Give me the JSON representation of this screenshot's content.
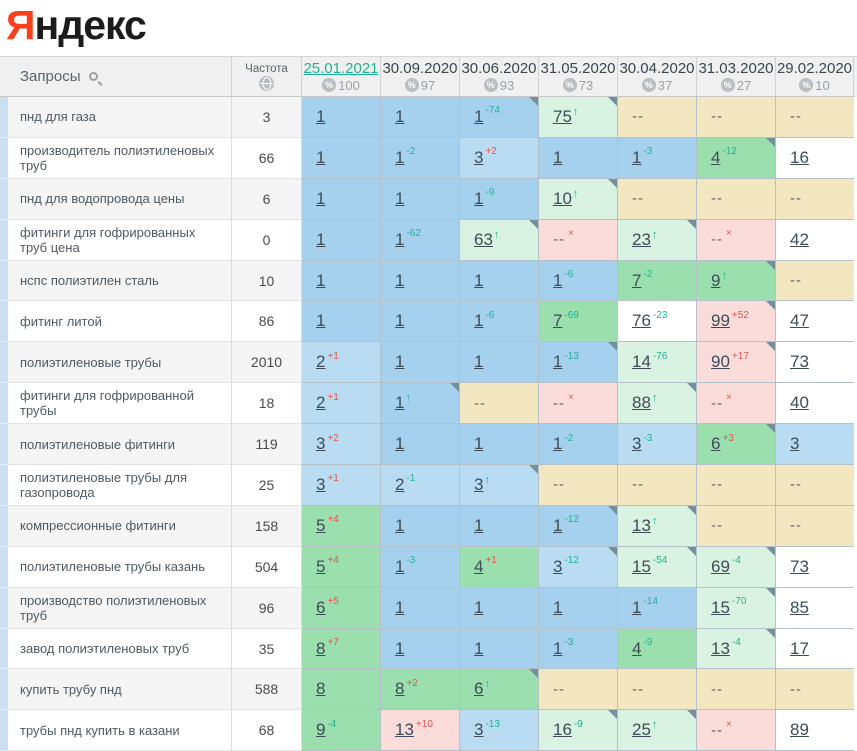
{
  "logo": {
    "red": "Я",
    "rest": "ндекс"
  },
  "colors": {
    "brand_red": "#fb3f1d",
    "active_date": "#1fb394",
    "change_up_green": "#1fb394",
    "change_down_red": "#e0584a",
    "top1_blue": "#a5d1ee",
    "top3_blue": "#b9dcf3",
    "top10_green": "#9adfad",
    "improved_light_green": "#daf2e1",
    "no_data_tan": "#f3e7c2",
    "dropped_pink": "#fadcdb"
  },
  "table": {
    "queries_header": "Запросы",
    "frequency_header": "Частота",
    "icons": {
      "search": "search-icon",
      "engine": "globe-icon",
      "percent": "%"
    },
    "columns": [
      {
        "date": "25.01.2021",
        "percent": "100",
        "active": true
      },
      {
        "date": "30.09.2020",
        "percent": "97",
        "active": false
      },
      {
        "date": "30.06.2020",
        "percent": "93",
        "active": false
      },
      {
        "date": "31.05.2020",
        "percent": "73",
        "active": false
      },
      {
        "date": "30.04.2020",
        "percent": "37",
        "active": false
      },
      {
        "date": "31.03.2020",
        "percent": "27",
        "active": false
      },
      {
        "date": "29.02.2020",
        "percent": "10",
        "active": false
      }
    ],
    "rows": [
      {
        "keyword": "пнд для газа",
        "frequency": "3",
        "cells": [
          {
            "v": "1",
            "bg": "b1"
          },
          {
            "v": "1",
            "bg": "b1"
          },
          {
            "v": "1",
            "sup": "-74",
            "supc": "g",
            "bg": "b1",
            "corner": true
          },
          {
            "v": "75",
            "arrow": "up",
            "bg": "lg",
            "corner": true
          },
          {
            "v": "--",
            "bg": "t"
          },
          {
            "v": "--",
            "bg": "t"
          },
          {
            "v": "--",
            "bg": "t"
          }
        ]
      },
      {
        "keyword": "производитель полиэтиленовых труб",
        "frequency": "66",
        "cells": [
          {
            "v": "1",
            "bg": "b1"
          },
          {
            "v": "1",
            "sup": "-2",
            "supc": "g",
            "bg": "b1"
          },
          {
            "v": "3",
            "sup": "+2",
            "supc": "r",
            "bg": "b2"
          },
          {
            "v": "1",
            "bg": "b1"
          },
          {
            "v": "1",
            "sup": "-3",
            "supc": "g",
            "bg": "b1"
          },
          {
            "v": "4",
            "sup": "-12",
            "supc": "g",
            "bg": "g",
            "corner": true
          },
          {
            "v": "16",
            "bg": "w"
          }
        ]
      },
      {
        "keyword": "пнд для водопровода цены",
        "frequency": "6",
        "cells": [
          {
            "v": "1",
            "bg": "b1"
          },
          {
            "v": "1",
            "bg": "b1"
          },
          {
            "v": "1",
            "sup": "-9",
            "supc": "g",
            "bg": "b1"
          },
          {
            "v": "10",
            "arrow": "up",
            "bg": "lg",
            "corner": true
          },
          {
            "v": "--",
            "bg": "t"
          },
          {
            "v": "--",
            "bg": "t"
          },
          {
            "v": "--",
            "bg": "t"
          }
        ]
      },
      {
        "keyword": "фитинги для гофрированных труб цена",
        "frequency": "0",
        "cells": [
          {
            "v": "1",
            "bg": "b1"
          },
          {
            "v": "1",
            "sup": "-62",
            "supc": "g",
            "bg": "b1"
          },
          {
            "v": "63",
            "arrow": "up",
            "bg": "lg",
            "corner": true
          },
          {
            "v": "--",
            "arrow": "x",
            "bg": "p"
          },
          {
            "v": "23",
            "arrow": "up",
            "bg": "lg",
            "corner": true
          },
          {
            "v": "--",
            "arrow": "x",
            "bg": "p"
          },
          {
            "v": "42",
            "bg": "w"
          }
        ]
      },
      {
        "keyword": "нспс полиэтилен сталь",
        "frequency": "10",
        "cells": [
          {
            "v": "1",
            "bg": "b1"
          },
          {
            "v": "1",
            "bg": "b1"
          },
          {
            "v": "1",
            "bg": "b1"
          },
          {
            "v": "1",
            "sup": "-6",
            "supc": "g",
            "bg": "b1"
          },
          {
            "v": "7",
            "sup": "-2",
            "supc": "g",
            "bg": "g"
          },
          {
            "v": "9",
            "arrow": "up",
            "bg": "g",
            "corner": true
          },
          {
            "v": "--",
            "bg": "t"
          }
        ]
      },
      {
        "keyword": "фитинг литой",
        "frequency": "86",
        "cells": [
          {
            "v": "1",
            "bg": "b1"
          },
          {
            "v": "1",
            "bg": "b1"
          },
          {
            "v": "1",
            "sup": "-6",
            "supc": "g",
            "bg": "b1"
          },
          {
            "v": "7",
            "sup": "-69",
            "supc": "g",
            "bg": "g"
          },
          {
            "v": "76",
            "sup": "-23",
            "supc": "g",
            "bg": "w"
          },
          {
            "v": "99",
            "sup": "+52",
            "supc": "r",
            "bg": "p",
            "corner": true
          },
          {
            "v": "47",
            "bg": "w"
          }
        ]
      },
      {
        "keyword": "полиэтиленовые трубы",
        "frequency": "2010",
        "cells": [
          {
            "v": "2",
            "sup": "+1",
            "supc": "r",
            "bg": "b2"
          },
          {
            "v": "1",
            "bg": "b1"
          },
          {
            "v": "1",
            "bg": "b1"
          },
          {
            "v": "1",
            "sup": "-13",
            "supc": "g",
            "bg": "b1",
            "corner": true
          },
          {
            "v": "14",
            "sup": "-76",
            "supc": "g",
            "bg": "lg"
          },
          {
            "v": "90",
            "sup": "+17",
            "supc": "r",
            "bg": "p",
            "corner": true
          },
          {
            "v": "73",
            "bg": "w"
          }
        ]
      },
      {
        "keyword": "фитинги для гофрированной трубы",
        "frequency": "18",
        "cells": [
          {
            "v": "2",
            "sup": "+1",
            "supc": "r",
            "bg": "b2"
          },
          {
            "v": "1",
            "arrow": "up",
            "bg": "b1",
            "corner": true
          },
          {
            "v": "--",
            "bg": "t"
          },
          {
            "v": "--",
            "arrow": "x",
            "bg": "p"
          },
          {
            "v": "88",
            "arrow": "up",
            "bg": "lg",
            "corner": true
          },
          {
            "v": "--",
            "arrow": "x",
            "bg": "p"
          },
          {
            "v": "40",
            "bg": "w"
          }
        ]
      },
      {
        "keyword": "полиэтиленовые фитинги",
        "frequency": "119",
        "cells": [
          {
            "v": "3",
            "sup": "+2",
            "supc": "r",
            "bg": "b2"
          },
          {
            "v": "1",
            "bg": "b1"
          },
          {
            "v": "1",
            "bg": "b1"
          },
          {
            "v": "1",
            "sup": "-2",
            "supc": "g",
            "bg": "b1"
          },
          {
            "v": "3",
            "sup": "-3",
            "supc": "g",
            "bg": "b2"
          },
          {
            "v": "6",
            "sup": "+3",
            "supc": "r",
            "bg": "g",
            "corner": true
          },
          {
            "v": "3",
            "bg": "b2"
          }
        ]
      },
      {
        "keyword": "полиэтиленовые трубы для газопровода",
        "frequency": "25",
        "cells": [
          {
            "v": "3",
            "sup": "+1",
            "supc": "r",
            "bg": "b2"
          },
          {
            "v": "2",
            "sup": "-1",
            "supc": "g",
            "bg": "b2"
          },
          {
            "v": "3",
            "arrow": "up",
            "bg": "b2",
            "corner": true
          },
          {
            "v": "--",
            "bg": "t"
          },
          {
            "v": "--",
            "bg": "t"
          },
          {
            "v": "--",
            "bg": "t"
          },
          {
            "v": "--",
            "bg": "t"
          }
        ]
      },
      {
        "keyword": "компрессионные фитинги",
        "frequency": "158",
        "cells": [
          {
            "v": "5",
            "sup": "+4",
            "supc": "r",
            "bg": "g"
          },
          {
            "v": "1",
            "bg": "b1"
          },
          {
            "v": "1",
            "bg": "b1"
          },
          {
            "v": "1",
            "sup": "-12",
            "supc": "g",
            "bg": "b1",
            "corner": true
          },
          {
            "v": "13",
            "arrow": "up",
            "bg": "lg",
            "corner": true
          },
          {
            "v": "--",
            "bg": "t"
          },
          {
            "v": "--",
            "bg": "t"
          }
        ]
      },
      {
        "keyword": "полиэтиленовые трубы казань",
        "frequency": "504",
        "cells": [
          {
            "v": "5",
            "sup": "+4",
            "supc": "r",
            "bg": "g"
          },
          {
            "v": "1",
            "sup": "-3",
            "supc": "g",
            "bg": "b1"
          },
          {
            "v": "4",
            "sup": "+1",
            "supc": "r",
            "bg": "g"
          },
          {
            "v": "3",
            "sup": "-12",
            "supc": "g",
            "bg": "b2",
            "corner": true
          },
          {
            "v": "15",
            "sup": "-54",
            "supc": "g",
            "bg": "lg",
            "corner": true
          },
          {
            "v": "69",
            "sup": "-4",
            "supc": "g",
            "bg": "lg",
            "corner": true
          },
          {
            "v": "73",
            "bg": "w"
          }
        ]
      },
      {
        "keyword": "производство полиэтиленовых труб",
        "frequency": "96",
        "cells": [
          {
            "v": "6",
            "sup": "+5",
            "supc": "r",
            "bg": "g"
          },
          {
            "v": "1",
            "bg": "b1"
          },
          {
            "v": "1",
            "bg": "b1"
          },
          {
            "v": "1",
            "bg": "b1"
          },
          {
            "v": "1",
            "sup": "-14",
            "supc": "g",
            "bg": "b1"
          },
          {
            "v": "15",
            "sup": "-70",
            "supc": "g",
            "bg": "lg",
            "corner": true
          },
          {
            "v": "85",
            "bg": "w"
          }
        ]
      },
      {
        "keyword": "завод полиэтиленовых труб",
        "frequency": "35",
        "cells": [
          {
            "v": "8",
            "sup": "+7",
            "supc": "r",
            "bg": "g"
          },
          {
            "v": "1",
            "bg": "b1"
          },
          {
            "v": "1",
            "bg": "b1"
          },
          {
            "v": "1",
            "sup": "-3",
            "supc": "g",
            "bg": "b1"
          },
          {
            "v": "4",
            "sup": "-9",
            "supc": "g",
            "bg": "g"
          },
          {
            "v": "13",
            "sup": "-4",
            "supc": "g",
            "bg": "lg",
            "corner": true
          },
          {
            "v": "17",
            "bg": "w"
          }
        ]
      },
      {
        "keyword": "купить трубу пнд",
        "frequency": "588",
        "cells": [
          {
            "v": "8",
            "bg": "g"
          },
          {
            "v": "8",
            "sup": "+2",
            "supc": "r",
            "bg": "g"
          },
          {
            "v": "6",
            "arrow": "up",
            "bg": "g",
            "corner": true
          },
          {
            "v": "--",
            "bg": "t"
          },
          {
            "v": "--",
            "bg": "t"
          },
          {
            "v": "--",
            "bg": "t"
          },
          {
            "v": "--",
            "bg": "t"
          }
        ]
      },
      {
        "keyword": "трубы пнд купить в казани",
        "frequency": "68",
        "cells": [
          {
            "v": "9",
            "sup": "-4",
            "supc": "g",
            "bg": "g"
          },
          {
            "v": "13",
            "sup": "+10",
            "supc": "r",
            "bg": "p"
          },
          {
            "v": "3",
            "sup": "-13",
            "supc": "g",
            "bg": "b2"
          },
          {
            "v": "16",
            "sup": "-9",
            "supc": "g",
            "bg": "lg",
            "corner": true
          },
          {
            "v": "25",
            "arrow": "up",
            "bg": "lg",
            "corner": true
          },
          {
            "v": "--",
            "arrow": "x",
            "bg": "p"
          },
          {
            "v": "89",
            "bg": "w"
          }
        ]
      }
    ]
  }
}
